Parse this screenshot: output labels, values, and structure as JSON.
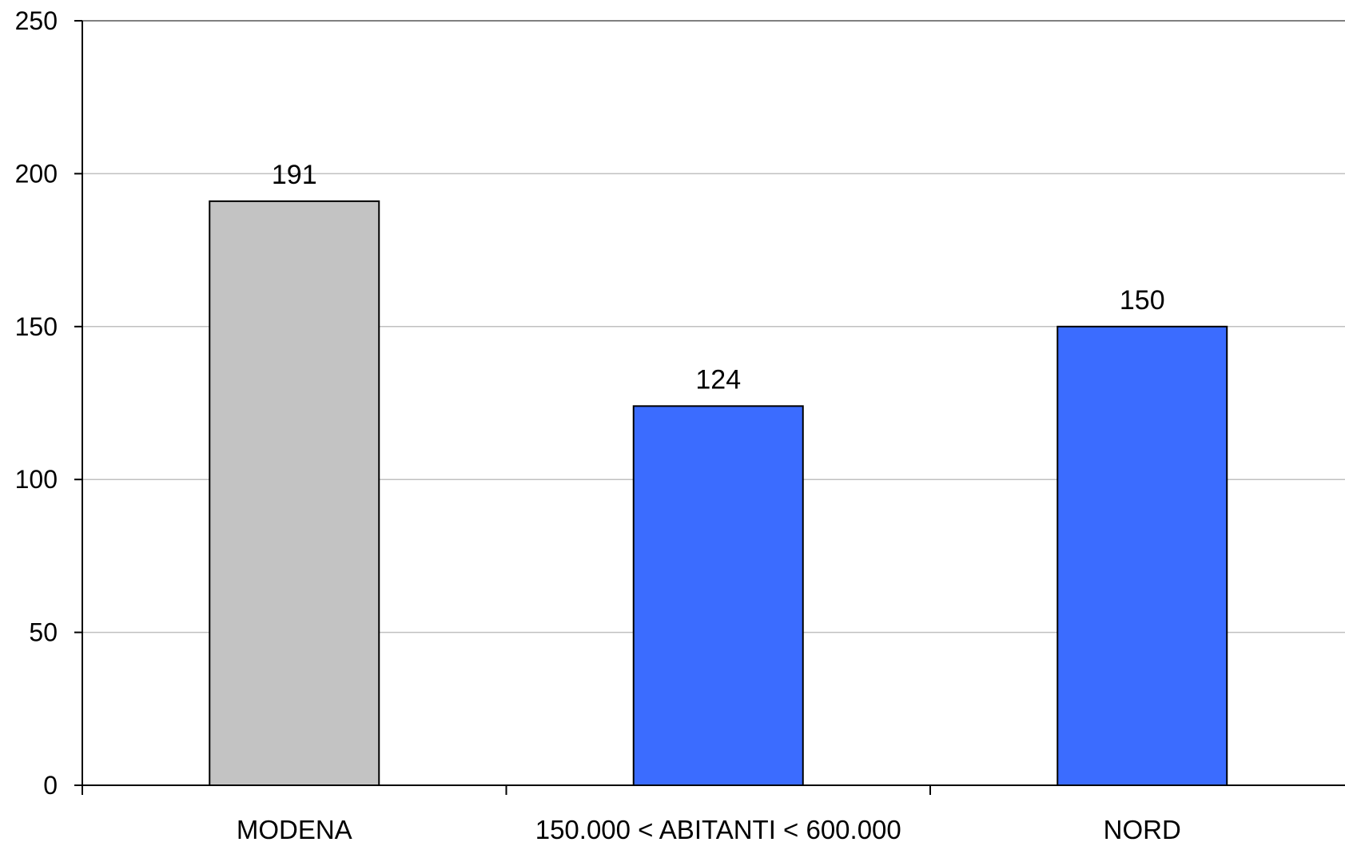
{
  "chart_data": {
    "type": "bar",
    "title": "",
    "xlabel": "",
    "ylabel": "",
    "categories": [
      "MODENA",
      "150.000 < ABITANTI < 600.000",
      "NORD"
    ],
    "values": [
      191,
      124,
      150
    ],
    "data_labels": [
      "191",
      "124",
      "150"
    ],
    "bar_colors": [
      "#c3c3c3",
      "#3b6cff",
      "#3b6cff"
    ],
    "ylim": [
      0,
      250
    ],
    "yticks": [
      0,
      50,
      100,
      150,
      200,
      250
    ],
    "ytick_labels": [
      "0",
      "50",
      "100",
      "150",
      "200",
      "250"
    ],
    "grid": true,
    "grid_color": "#c0c0c0",
    "legend": "none"
  }
}
